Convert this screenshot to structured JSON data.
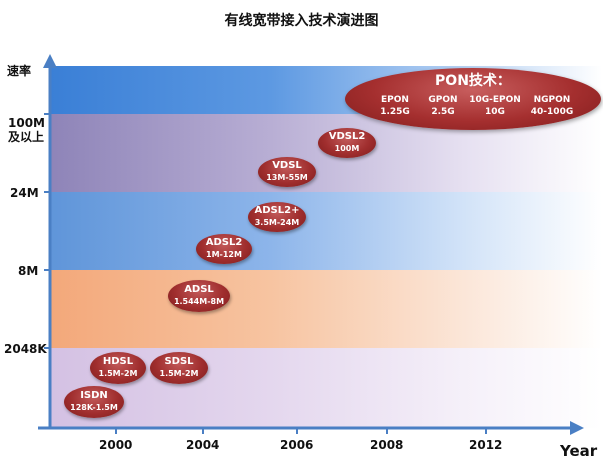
{
  "title": "有线宽带接入技术演进图",
  "y_axis": {
    "title": "速率",
    "levels": [
      "2048K",
      "8M",
      "24M",
      "100M\n及以上"
    ]
  },
  "x_axis": {
    "title": "Year",
    "ticks": [
      "2000",
      "2004",
      "2006",
      "2008",
      "2012"
    ]
  },
  "technologies": [
    {
      "name": "ISDN",
      "speed": "128K-1.5M"
    },
    {
      "name": "HDSL",
      "speed": "1.5M-2M"
    },
    {
      "name": "SDSL",
      "speed": "1.5M-2M"
    },
    {
      "name": "ADSL",
      "speed": "1.544M-8M"
    },
    {
      "name": "ADSL2",
      "speed": "1M-12M"
    },
    {
      "name": "ADSL2+",
      "speed": "3.5M-24M"
    },
    {
      "name": "VDSL",
      "speed": "13M-55M"
    },
    {
      "name": "VDSL2",
      "speed": "100M"
    }
  ],
  "pon": {
    "title": "PON技术：",
    "items": [
      {
        "name": "EPON",
        "speed": "1.25G"
      },
      {
        "name": "GPON",
        "speed": "2.5G"
      },
      {
        "name": "10G-EPON",
        "speed": "10G"
      },
      {
        "name": "NGPON",
        "speed": "40-100G"
      }
    ]
  },
  "colors": {
    "axis": "#4a7fc4",
    "ellipse": "#a02e2e",
    "band_top": "#3a7fd6",
    "band_purple": "#8e84b8",
    "band_blue": "#5f95d9",
    "band_orange": "#f3a87a",
    "band_lavender": "#d4c1e3"
  }
}
